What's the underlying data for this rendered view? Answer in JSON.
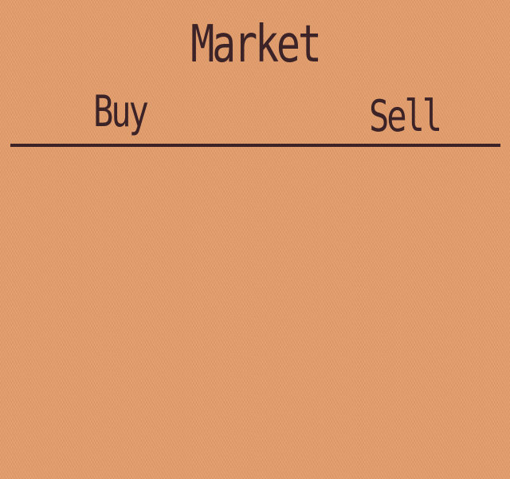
{
  "market": {
    "title": "Market",
    "tabs": {
      "buy": {
        "label": "Buy"
      },
      "sell": {
        "label": "Sell"
      }
    },
    "items": []
  },
  "colors": {
    "background": "#e39d6c",
    "text": "#3b2327"
  }
}
